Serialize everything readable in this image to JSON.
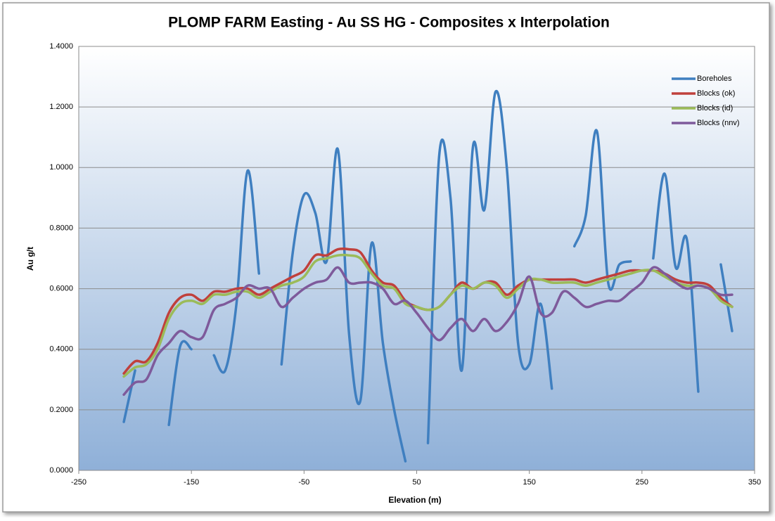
{
  "chart_data": {
    "type": "line",
    "title": "PLOMP FARM Easting - Au SS HG - Composites x Interpolation",
    "x_label": "Elevation (m)",
    "y_label": "Au g/t",
    "x": [
      -210,
      -200,
      -190,
      -180,
      -170,
      -160,
      -150,
      -140,
      -130,
      -120,
      -110,
      -100,
      -90,
      -80,
      -70,
      -60,
      -50,
      -40,
      -30,
      -20,
      -10,
      0,
      10,
      20,
      30,
      40,
      50,
      60,
      70,
      80,
      90,
      100,
      110,
      120,
      130,
      140,
      150,
      160,
      170,
      180,
      190,
      200,
      210,
      220,
      230,
      240,
      250,
      260,
      270,
      280,
      290,
      300,
      310,
      320,
      330
    ],
    "series": [
      {
        "name": "Boreholes",
        "color": "#3f7fc0",
        "values": [
          0.16,
          0.33,
          null,
          null,
          0.15,
          0.41,
          0.4,
          null,
          0.38,
          0.33,
          0.55,
          0.99,
          0.65,
          null,
          0.35,
          0.72,
          0.91,
          0.85,
          0.69,
          1.06,
          0.45,
          0.23,
          0.75,
          0.42,
          0.2,
          0.03,
          null,
          0.09,
          1.04,
          0.9,
          0.33,
          1.07,
          0.86,
          1.25,
          1.0,
          0.42,
          0.35,
          0.55,
          0.27,
          null,
          0.74,
          0.84,
          1.12,
          0.62,
          0.68,
          0.69,
          null,
          0.7,
          0.98,
          0.67,
          0.76,
          0.26,
          null,
          0.68,
          0.46
        ]
      },
      {
        "name": "Blocks (ok)",
        "color": "#c0403c",
        "values": [
          0.32,
          0.36,
          0.36,
          0.42,
          0.52,
          0.57,
          0.58,
          0.56,
          0.59,
          0.59,
          0.6,
          0.6,
          0.58,
          0.6,
          0.62,
          0.64,
          0.66,
          0.71,
          0.71,
          0.73,
          0.73,
          0.72,
          0.66,
          0.62,
          0.61,
          0.56,
          0.54,
          0.53,
          0.54,
          0.58,
          0.62,
          0.6,
          0.62,
          0.62,
          0.58,
          0.61,
          0.63,
          0.63,
          0.63,
          0.63,
          0.63,
          0.62,
          0.63,
          0.64,
          0.65,
          0.66,
          0.66,
          0.66,
          0.65,
          0.63,
          0.62,
          0.62,
          0.61,
          0.57,
          0.54
        ]
      },
      {
        "name": "Blocks (id)",
        "color": "#9bbb59",
        "values": [
          0.31,
          0.34,
          0.35,
          0.4,
          0.5,
          0.55,
          0.56,
          0.55,
          0.58,
          0.58,
          0.59,
          0.59,
          0.57,
          0.59,
          0.61,
          0.62,
          0.64,
          0.69,
          0.7,
          0.71,
          0.71,
          0.7,
          0.65,
          0.61,
          0.6,
          0.55,
          0.54,
          0.53,
          0.54,
          0.58,
          0.61,
          0.6,
          0.62,
          0.61,
          0.57,
          0.6,
          0.63,
          0.63,
          0.62,
          0.62,
          0.62,
          0.61,
          0.62,
          0.63,
          0.64,
          0.65,
          0.66,
          0.66,
          0.64,
          0.62,
          0.61,
          0.61,
          0.6,
          0.56,
          0.54
        ]
      },
      {
        "name": "Blocks (nnv)",
        "color": "#7e5a9b",
        "values": [
          0.25,
          0.29,
          0.3,
          0.38,
          0.42,
          0.46,
          0.44,
          0.44,
          0.53,
          0.55,
          0.57,
          0.61,
          0.6,
          0.6,
          0.54,
          0.57,
          0.6,
          0.62,
          0.63,
          0.67,
          0.62,
          0.62,
          0.62,
          0.6,
          0.55,
          0.56,
          0.52,
          0.47,
          0.43,
          0.47,
          0.5,
          0.46,
          0.5,
          0.46,
          0.49,
          0.55,
          0.64,
          0.52,
          0.52,
          0.59,
          0.57,
          0.54,
          0.55,
          0.56,
          0.56,
          0.59,
          0.62,
          0.67,
          0.65,
          0.62,
          0.6,
          0.61,
          0.6,
          0.58,
          0.58
        ]
      }
    ],
    "xlim": [
      -250,
      350
    ],
    "xticks": [
      -250,
      -150,
      -50,
      50,
      150,
      250,
      350
    ],
    "ylim": [
      0,
      1.4
    ],
    "yticks": [
      {
        "value": 0,
        "label": "0.0000"
      },
      {
        "value": 0.2,
        "label": "0.2000"
      },
      {
        "value": 0.4,
        "label": "0.4000"
      },
      {
        "value": 0.6,
        "label": "0.6000"
      },
      {
        "value": 0.8,
        "label": "0.8000"
      },
      {
        "value": 1.0,
        "label": "1.0000"
      },
      {
        "value": 1.2,
        "label": "1.2000"
      },
      {
        "value": 1.4,
        "label": "1.4000"
      }
    ],
    "grid": true,
    "legend": "top-right"
  }
}
